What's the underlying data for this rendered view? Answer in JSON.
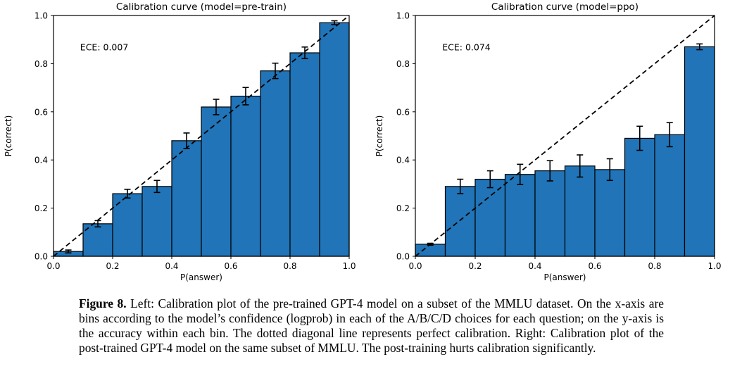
{
  "colors": {
    "bar_fill": "#2074b7",
    "bar_edge": "#000000",
    "line_color": "#000000",
    "background": "#ffffff"
  },
  "caption": {
    "label": "Figure 8.",
    "text": " Left: Calibration plot of the pre-trained GPT-4 model on a subset of the MMLU dataset. On the x-axis are bins according to the model’s confidence (logprob) in each of the A/B/C/D choices for each question; on the y-axis is the accuracy within each bin. The dotted diagonal line represents perfect calibration. Right: Calibration plot of the post-trained GPT-4 model on the same subset of MMLU. The post-training hurts calibration significantly."
  },
  "chart_data": [
    {
      "type": "bar",
      "title": "Calibration curve (model=pre-train)",
      "annotation": "ECE: 0.007",
      "annotation_xy": [
        0.09,
        0.855
      ],
      "xlabel": "P(answer)",
      "ylabel": "P(correct)",
      "xlim": [
        0.0,
        1.0
      ],
      "ylim": [
        0.0,
        1.0
      ],
      "xticks": [
        0.0,
        0.2,
        0.4,
        0.6,
        0.8,
        1.0
      ],
      "yticks": [
        0.0,
        0.2,
        0.4,
        0.6,
        0.8,
        1.0
      ],
      "grid": false,
      "legend": null,
      "diagonal_reference_line": true,
      "bin_edges": [
        0.0,
        0.1,
        0.2,
        0.3,
        0.4,
        0.5,
        0.6,
        0.7,
        0.8,
        0.9,
        1.0
      ],
      "bin_centers": [
        0.05,
        0.15,
        0.25,
        0.35,
        0.45,
        0.55,
        0.65,
        0.75,
        0.85,
        0.95
      ],
      "values": [
        0.02,
        0.135,
        0.26,
        0.29,
        0.48,
        0.62,
        0.665,
        0.77,
        0.845,
        0.97
      ],
      "errors": [
        0.006,
        0.013,
        0.018,
        0.025,
        0.032,
        0.032,
        0.036,
        0.032,
        0.024,
        0.008
      ]
    },
    {
      "type": "bar",
      "title": "Calibration curve (model=ppo)",
      "annotation": "ECE: 0.074",
      "annotation_xy": [
        0.09,
        0.855
      ],
      "xlabel": "P(answer)",
      "ylabel": "P(correct)",
      "xlim": [
        0.0,
        1.0
      ],
      "ylim": [
        0.0,
        1.0
      ],
      "xticks": [
        0.0,
        0.2,
        0.4,
        0.6,
        0.8,
        1.0
      ],
      "yticks": [
        0.0,
        0.2,
        0.4,
        0.6,
        0.8,
        1.0
      ],
      "grid": false,
      "legend": null,
      "diagonal_reference_line": true,
      "bin_edges": [
        0.0,
        0.1,
        0.2,
        0.3,
        0.4,
        0.5,
        0.6,
        0.7,
        0.8,
        0.9,
        1.0
      ],
      "bin_centers": [
        0.05,
        0.15,
        0.25,
        0.35,
        0.45,
        0.55,
        0.65,
        0.75,
        0.85,
        0.95
      ],
      "values": [
        0.05,
        0.29,
        0.32,
        0.34,
        0.355,
        0.375,
        0.36,
        0.49,
        0.505,
        0.87
      ],
      "errors": [
        0.004,
        0.03,
        0.035,
        0.042,
        0.042,
        0.046,
        0.045,
        0.05,
        0.05,
        0.012
      ]
    }
  ]
}
